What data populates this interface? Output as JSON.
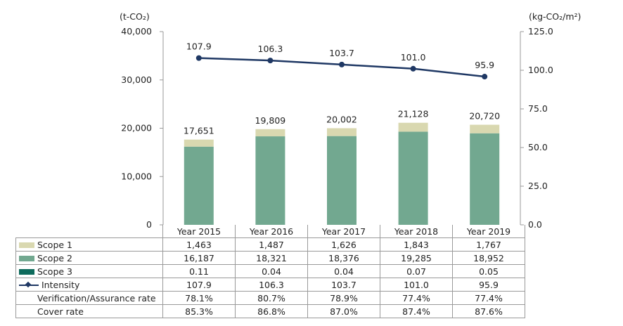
{
  "chart_data": {
    "type": "bar",
    "stacked": true,
    "left_unit": "(t-CO₂)",
    "right_unit": "(kg-CO₂/m²)",
    "categories": [
      "Year 2015",
      "Year 2016",
      "Year 2017",
      "Year 2018",
      "Year 2019"
    ],
    "ylim": [
      0,
      40000
    ],
    "yticks": [
      "0",
      "10,000",
      "20,000",
      "30,000",
      "40,000"
    ],
    "y2lim": [
      0,
      125
    ],
    "y2ticks": [
      "0.0",
      "25.0",
      "50.0",
      "75.0",
      "100.0",
      "125.0"
    ],
    "totals": [
      17651,
      19809,
      20002,
      21128,
      20720
    ],
    "total_labels": [
      "17,651",
      "19,809",
      "20,002",
      "21,128",
      "20,720"
    ],
    "series": [
      {
        "name": "Scope 1",
        "color": "#d9d8b0",
        "values": [
          1463,
          1487,
          1626,
          1843,
          1767
        ],
        "labels": [
          "1,463",
          "1,487",
          "1,626",
          "1,843",
          "1,767"
        ]
      },
      {
        "name": "Scope 2",
        "color": "#72a890",
        "values": [
          16187,
          18321,
          18376,
          19285,
          18952
        ],
        "labels": [
          "16,187",
          "18,321",
          "18,376",
          "19,285",
          "18,952"
        ]
      },
      {
        "name": "Scope 3",
        "color": "#0e6b5c",
        "values": [
          0.11,
          0.04,
          0.04,
          0.07,
          0.05
        ],
        "labels": [
          "0.11",
          "0.04",
          "0.04",
          "0.07",
          "0.05"
        ]
      }
    ],
    "line": {
      "name": "Intensity",
      "color": "#1f3864",
      "axis": "right",
      "values": [
        107.9,
        106.3,
        103.7,
        101.0,
        95.9
      ],
      "labels": [
        "107.9",
        "106.3",
        "103.7",
        "101.0",
        "95.9"
      ]
    },
    "extra_rows": [
      {
        "name": "Verification/Assurance rate",
        "labels": [
          "78.1%",
          "80.7%",
          "78.9%",
          "77.4%",
          "77.4%"
        ]
      },
      {
        "name": "Cover rate",
        "labels": [
          "85.3%",
          "86.8%",
          "87.0%",
          "87.4%",
          "87.6%"
        ]
      }
    ]
  }
}
